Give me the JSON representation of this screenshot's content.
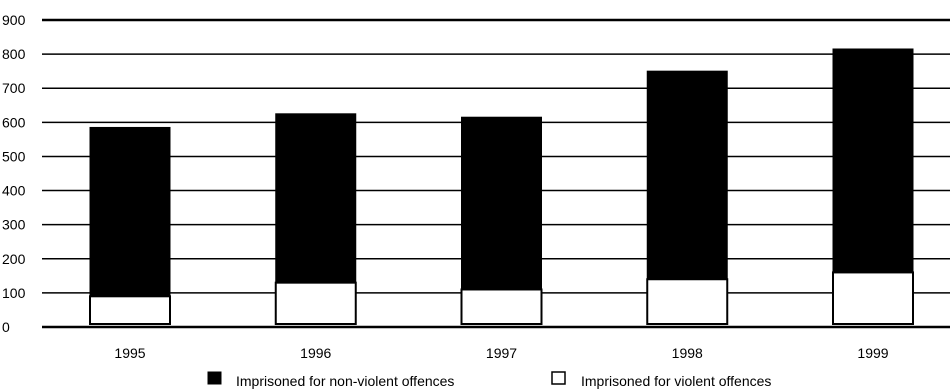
{
  "chart_data": {
    "type": "bar",
    "stacked": true,
    "categories": [
      "1995",
      "1996",
      "1997",
      "1998",
      "1999"
    ],
    "series": [
      {
        "name": "Imprisoned for violent offences",
        "values": [
          90,
          130,
          110,
          140,
          160
        ],
        "color": "#ffffff"
      },
      {
        "name": "Imprisoned for non-violent offences",
        "values": [
          495,
          495,
          505,
          610,
          655
        ],
        "color": "#000000"
      }
    ],
    "ylim": [
      0,
      900
    ],
    "yticks": [
      0,
      100,
      200,
      300,
      400,
      500,
      600,
      700,
      800,
      900
    ],
    "grid": true,
    "legend_position": "bottom",
    "title": "",
    "xlabel": "",
    "ylabel": ""
  },
  "legend": {
    "items": [
      {
        "label": "Imprisoned for non-violent offences",
        "swatch": "#000000"
      },
      {
        "label": "Imprisoned for violent offences",
        "swatch": "#ffffff"
      }
    ]
  }
}
